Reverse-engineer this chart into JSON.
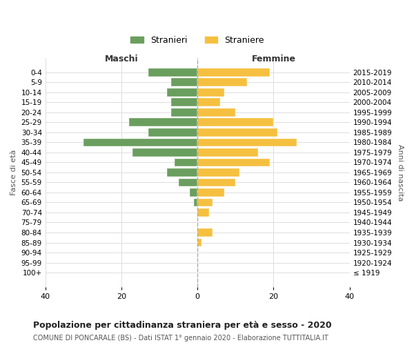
{
  "age_groups": [
    "100+",
    "95-99",
    "90-94",
    "85-89",
    "80-84",
    "75-79",
    "70-74",
    "65-69",
    "60-64",
    "55-59",
    "50-54",
    "45-49",
    "40-44",
    "35-39",
    "30-34",
    "25-29",
    "20-24",
    "15-19",
    "10-14",
    "5-9",
    "0-4"
  ],
  "birth_years": [
    "≤ 1919",
    "1920-1924",
    "1925-1929",
    "1930-1934",
    "1935-1939",
    "1940-1944",
    "1945-1949",
    "1950-1954",
    "1955-1959",
    "1960-1964",
    "1965-1969",
    "1970-1974",
    "1975-1979",
    "1980-1984",
    "1985-1989",
    "1990-1994",
    "1995-1999",
    "2000-2004",
    "2005-2009",
    "2010-2014",
    "2015-2019"
  ],
  "maschi": [
    0,
    0,
    0,
    0,
    0,
    0,
    0,
    1,
    2,
    5,
    8,
    6,
    17,
    30,
    13,
    18,
    7,
    7,
    8,
    7,
    13
  ],
  "femmine": [
    0,
    0,
    0,
    1,
    4,
    0,
    3,
    4,
    7,
    10,
    11,
    19,
    16,
    26,
    21,
    20,
    10,
    6,
    7,
    13,
    19
  ],
  "color_maschi": "#6a9e5e",
  "color_femmine": "#f5c040",
  "background_color": "#ffffff",
  "grid_color": "#dddddd",
  "title": "Popolazione per cittadinanza straniera per età e sesso - 2020",
  "subtitle": "COMUNE DI PONCARALE (BS) - Dati ISTAT 1° gennaio 2020 - Elaborazione TUTTITALIA.IT",
  "xlabel_left": "Maschi",
  "xlabel_right": "Femmine",
  "ylabel_left": "Fasce di età",
  "ylabel_right": "Anni di nascita",
  "legend_maschi": "Stranieri",
  "legend_femmine": "Straniere",
  "xlim": 40,
  "bar_height": 0.8
}
